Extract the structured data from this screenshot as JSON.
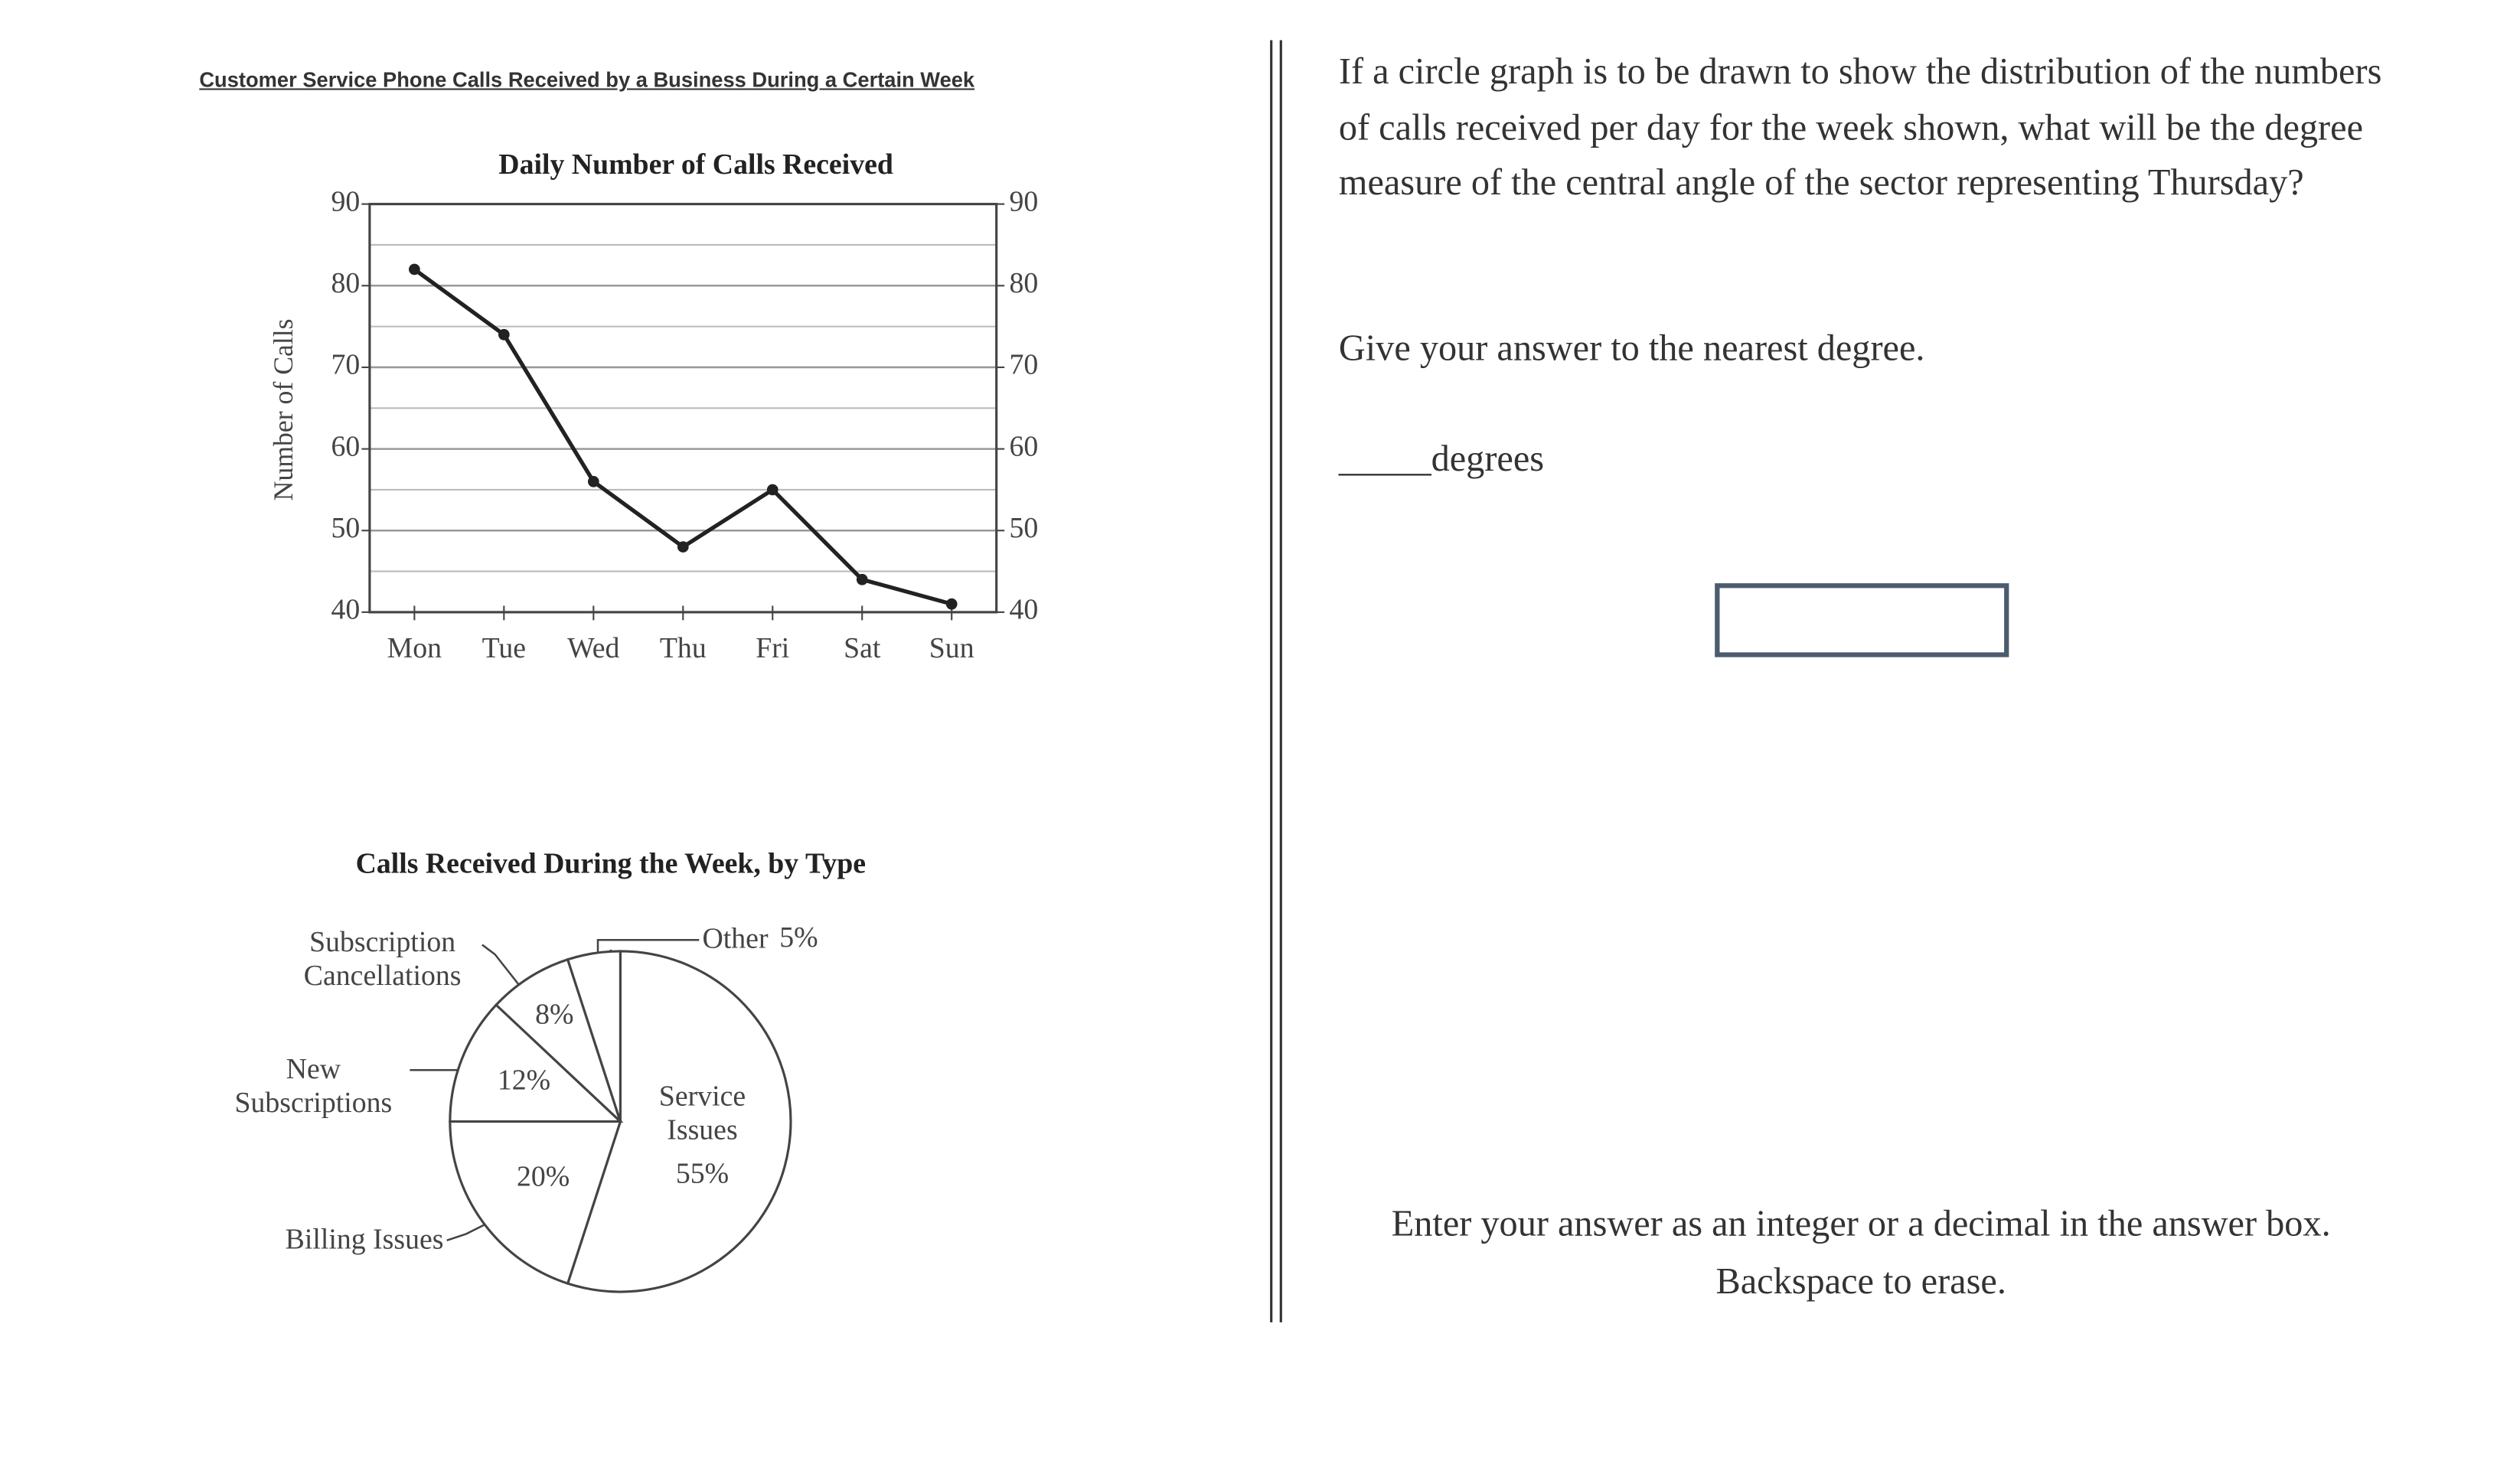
{
  "header": {
    "title": "Customer Service Phone Calls Received by a Business During a Certain Week"
  },
  "chart_data": [
    {
      "type": "line",
      "title": "Daily Number of Calls Received",
      "y_label": "Number of Calls",
      "categories": [
        "Mon",
        "Tue",
        "Wed",
        "Thu",
        "Fri",
        "Sat",
        "Sun"
      ],
      "values": [
        82,
        74,
        56,
        48,
        55,
        44,
        41
      ],
      "color": "#222222",
      "ylim": [
        40,
        90
      ],
      "yticks": [
        40,
        50,
        60,
        70,
        80,
        90
      ],
      "minor_yticks": [
        45,
        55,
        65,
        75,
        85
      ],
      "grid": true,
      "right_axis_labels": true
    },
    {
      "type": "pie",
      "title": "Calls Received During the Week, by Type",
      "categories": [
        "Service Issues",
        "Billing Issues",
        "New Subscriptions",
        "Subscription Cancellations",
        "Other"
      ],
      "values": [
        55,
        20,
        12,
        8,
        5
      ],
      "value_labels": [
        "55%",
        "20%",
        "12%",
        "8%",
        "5%"
      ],
      "color": "#ffffff"
    }
  ],
  "question": {
    "text": "If a circle graph is to be drawn to show the distribution of the numbers of calls received per day for the week shown, what will be the degree measure of the central angle of the sector representing Thursday?",
    "instruction": "Give your answer to the nearest degree.",
    "blank": "_____",
    "unit": "degrees",
    "note": [
      "Enter your answer as an integer or a decimal in the answer box.",
      "Backspace to erase."
    ]
  }
}
